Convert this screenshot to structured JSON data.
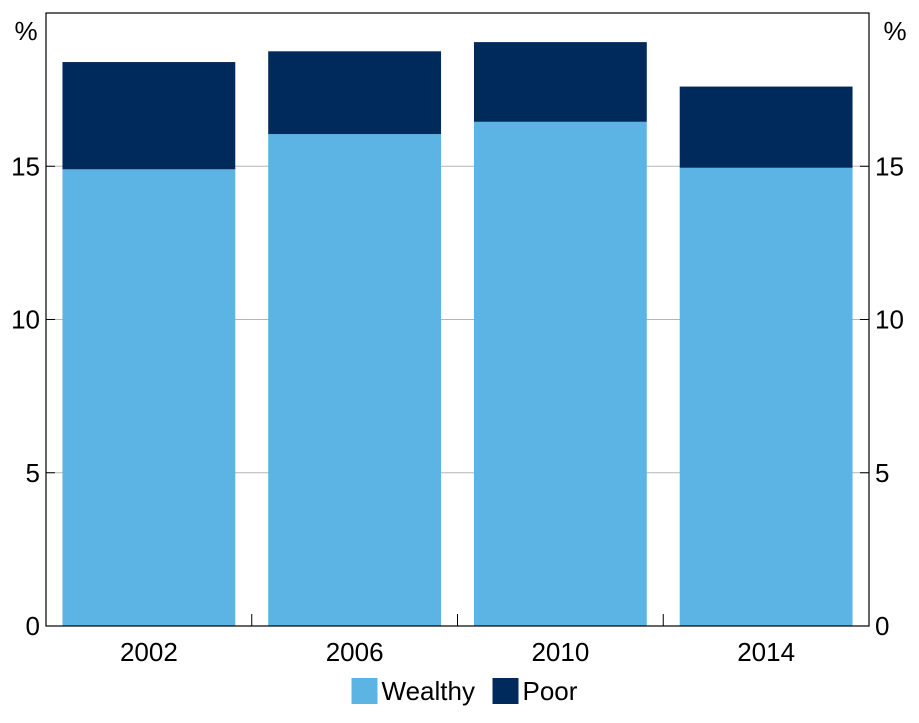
{
  "chart_data": {
    "type": "bar",
    "stacked": true,
    "categories": [
      "2002",
      "2006",
      "2010",
      "2014"
    ],
    "series": [
      {
        "name": "Wealthy",
        "values": [
          14.9,
          16.05,
          16.45,
          14.95
        ],
        "color": "#5bb4e3"
      },
      {
        "name": "Poor",
        "values": [
          3.5,
          2.7,
          2.6,
          2.65
        ],
        "color": "#002a5c"
      }
    ],
    "y_unit_left": "%",
    "y_unit_right": "%",
    "ylim": [
      0,
      20
    ],
    "yticks": [
      0,
      5,
      10,
      15
    ],
    "grid": true,
    "legend_position": "bottom-center"
  }
}
